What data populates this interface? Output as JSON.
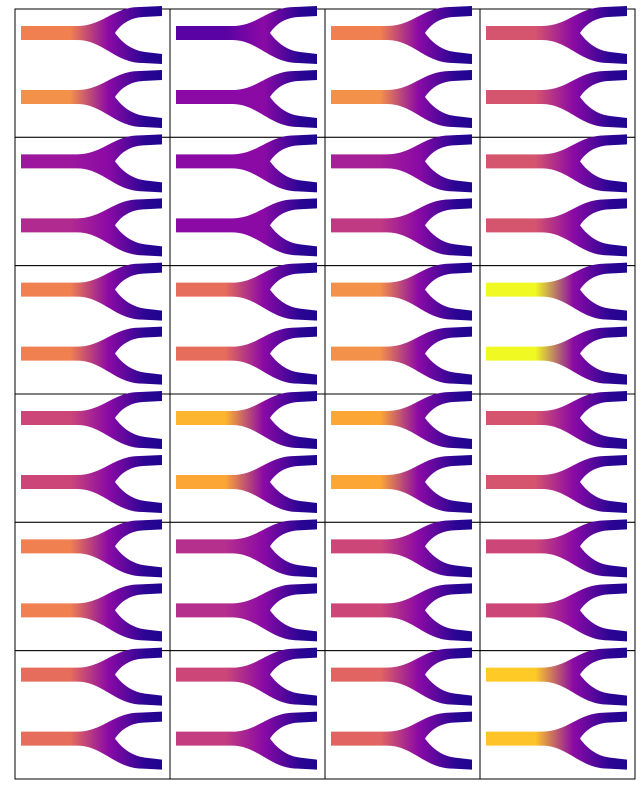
{
  "grid": {
    "rows": [
      [
        {
          "colors": [
            "#f0804f",
            "#f3904a"
          ]
        },
        {
          "colors": [
            "#5a02a3",
            "#8b0aa5"
          ]
        },
        {
          "colors": [
            "#f0804f",
            "#f3904a"
          ]
        },
        {
          "colors": [
            "#d5546e",
            "#d5546e"
          ]
        }
      ],
      [
        {
          "colors": [
            "#9c179e",
            "#b12a90"
          ]
        },
        {
          "colors": [
            "#8b0aa5",
            "#8b0aa5"
          ]
        },
        {
          "colors": [
            "#a62098",
            "#c03a83"
          ]
        },
        {
          "colors": [
            "#d5546e",
            "#d5546e"
          ]
        }
      ],
      [
        {
          "colors": [
            "#f0804f",
            "#f0804f"
          ]
        },
        {
          "colors": [
            "#e66c5c",
            "#e66c5c"
          ]
        },
        {
          "colors": [
            "#f3904a",
            "#f3904a"
          ]
        },
        {
          "colors": [
            "#f0f921",
            "#f0f921"
          ]
        }
      ],
      [
        {
          "colors": [
            "#cc4778",
            "#cc4778"
          ]
        },
        {
          "colors": [
            "#fdb42f",
            "#fca636"
          ]
        },
        {
          "colors": [
            "#fca636",
            "#fca636"
          ]
        },
        {
          "colors": [
            "#d5546e",
            "#d5546e"
          ]
        }
      ],
      [
        {
          "colors": [
            "#f0804f",
            "#f0804f"
          ]
        },
        {
          "colors": [
            "#b52f8c",
            "#b52f8c"
          ]
        },
        {
          "colors": [
            "#cc4778",
            "#cc4778"
          ]
        },
        {
          "colors": [
            "#cc4778",
            "#cc4778"
          ]
        }
      ],
      [
        {
          "colors": [
            "#e66c5c",
            "#e66c5c"
          ]
        },
        {
          "colors": [
            "#cc4778",
            "#c33d80"
          ]
        },
        {
          "colors": [
            "#e16462",
            "#e16462"
          ]
        },
        {
          "colors": [
            "#fdca26",
            "#fdc328"
          ]
        }
      ]
    ]
  }
}
